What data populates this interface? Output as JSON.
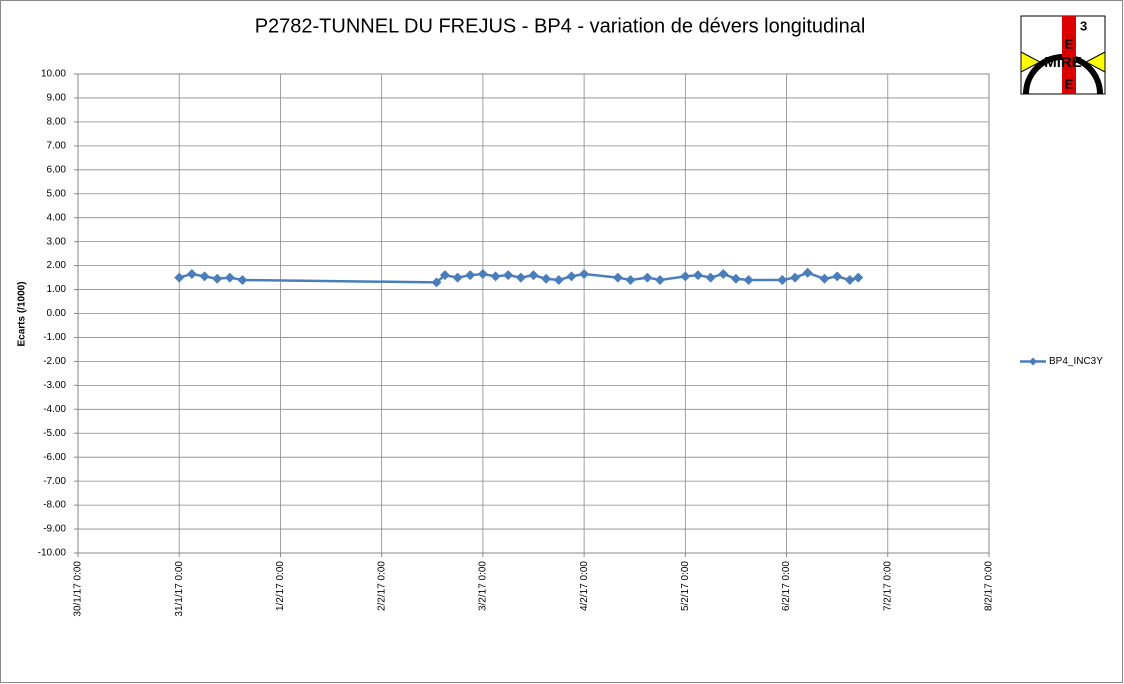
{
  "chart_data": {
    "type": "line",
    "title": "P2782-TUNNEL DU FREJUS - BP4 - variation de dévers longitudinal",
    "y_label": "Ecarts (/1000)",
    "x": [
      "2017-01-31T00:00",
      "2017-01-31T03:00",
      "2017-01-31T06:00",
      "2017-01-31T09:00",
      "2017-01-31T12:00",
      "2017-01-31T15:00",
      "2017-02-02T13:00",
      "2017-02-02T15:00",
      "2017-02-02T18:00",
      "2017-02-02T21:00",
      "2017-02-03T00:00",
      "2017-02-03T03:00",
      "2017-02-03T06:00",
      "2017-02-03T09:00",
      "2017-02-03T12:00",
      "2017-02-03T15:00",
      "2017-02-03T18:00",
      "2017-02-03T21:00",
      "2017-02-04T00:00",
      "2017-02-04T08:00",
      "2017-02-04T11:00",
      "2017-02-04T15:00",
      "2017-02-04T18:00",
      "2017-02-05T00:00",
      "2017-02-05T03:00",
      "2017-02-05T06:00",
      "2017-02-05T09:00",
      "2017-02-05T12:00",
      "2017-02-05T15:00",
      "2017-02-05T23:00",
      "2017-02-06T02:00",
      "2017-02-06T05:00",
      "2017-02-06T09:00",
      "2017-02-06T12:00",
      "2017-02-06T15:00",
      "2017-02-06T17:00"
    ],
    "series": [
      {
        "name": "BP4_INC3Y",
        "color": "#4a7ebb",
        "values": [
          1.5,
          1.65,
          1.55,
          1.45,
          1.5,
          1.4,
          1.3,
          1.6,
          1.5,
          1.6,
          1.65,
          1.55,
          1.6,
          1.5,
          1.6,
          1.45,
          1.4,
          1.55,
          1.65,
          1.5,
          1.4,
          1.5,
          1.4,
          1.55,
          1.6,
          1.5,
          1.65,
          1.45,
          1.4,
          1.4,
          1.5,
          1.7,
          1.45,
          1.55,
          1.4,
          1.5
        ]
      }
    ],
    "xlim": [
      "2017-01-30T00:00",
      "2017-02-08T00:00"
    ],
    "xticks": [
      {
        "value": "2017-01-30T00:00",
        "label": "30/1/17 0:00"
      },
      {
        "value": "2017-01-31T00:00",
        "label": "31/1/17 0:00"
      },
      {
        "value": "2017-02-01T00:00",
        "label": "1/2/17 0:00"
      },
      {
        "value": "2017-02-02T00:00",
        "label": "2/2/17 0:00"
      },
      {
        "value": "2017-02-03T00:00",
        "label": "3/2/17 0:00"
      },
      {
        "value": "2017-02-04T00:00",
        "label": "4/2/17 0:00"
      },
      {
        "value": "2017-02-05T00:00",
        "label": "5/2/17 0:00"
      },
      {
        "value": "2017-02-06T00:00",
        "label": "6/2/17 0:00"
      },
      {
        "value": "2017-02-07T00:00",
        "label": "7/2/17 0:00"
      },
      {
        "value": "2017-02-08T00:00",
        "label": "8/2/17 0:00"
      }
    ],
    "ylim": [
      -10,
      10
    ],
    "yticks": [
      {
        "value": 10,
        "label": "10.00"
      },
      {
        "value": 9,
        "label": "9.00"
      },
      {
        "value": 8,
        "label": "8.00"
      },
      {
        "value": 7,
        "label": "7.00"
      },
      {
        "value": 6,
        "label": "6.00"
      },
      {
        "value": 5,
        "label": "5.00"
      },
      {
        "value": 4,
        "label": "4.00"
      },
      {
        "value": 3,
        "label": "3.00"
      },
      {
        "value": 2,
        "label": "2.00"
      },
      {
        "value": 1,
        "label": "1.00"
      },
      {
        "value": 0,
        "label": "0.00"
      },
      {
        "value": -1,
        "label": "-1.00"
      },
      {
        "value": -2,
        "label": "-2.00"
      },
      {
        "value": -3,
        "label": "-3.00"
      },
      {
        "value": -4,
        "label": "-4.00"
      },
      {
        "value": -5,
        "label": "-5.00"
      },
      {
        "value": -6,
        "label": "-6.00"
      },
      {
        "value": -7,
        "label": "-7.00"
      },
      {
        "value": -8,
        "label": "-8.00"
      },
      {
        "value": -9,
        "label": "-9.00"
      },
      {
        "value": -10,
        "label": "-10.00"
      }
    ],
    "grid": true,
    "legend": "right"
  },
  "logo": {
    "top": "3",
    "mid": "E",
    "name": "MIRE",
    "bottom": "E"
  }
}
